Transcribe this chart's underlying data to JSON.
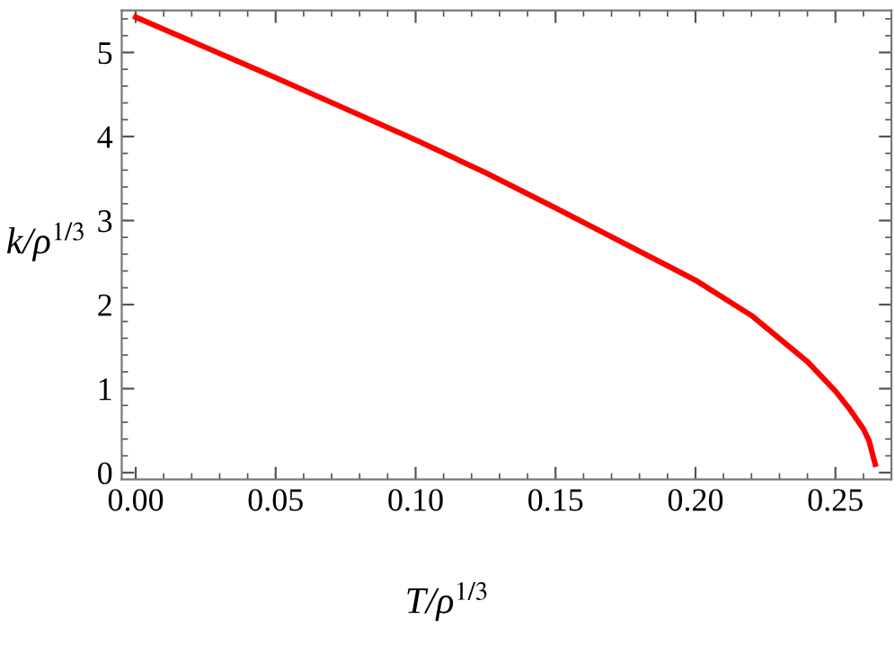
{
  "chart_data": {
    "type": "line",
    "xlabel": "T/ρ$^{1/3}$",
    "ylabel": "k/ρ$^{1/3}$",
    "x": [
      0.0,
      0.05,
      0.1,
      0.125,
      0.15,
      0.2,
      0.22,
      0.24,
      0.25,
      0.255,
      0.26,
      0.262,
      0.2642
    ],
    "series": [
      {
        "color": "#ff0000",
        "values": [
          5.42,
          4.7,
          3.96,
          3.57,
          3.15,
          2.29,
          1.87,
          1.32,
          0.97,
          0.76,
          0.52,
          0.38,
          0.1
        ]
      }
    ],
    "xlim": [
      -0.005,
      0.27
    ],
    "ylim": [
      -0.08,
      5.5
    ],
    "xticks": [
      {
        "value": 0,
        "label": "0.00"
      },
      0.05,
      {
        "value": 0.1,
        "label": "0.10"
      },
      0.15,
      {
        "value": 0.2,
        "label": "0.20"
      },
      0.25
    ],
    "yticks": [
      0,
      1,
      2,
      3,
      4,
      5
    ],
    "grid": false,
    "legend": false,
    "marker": "none",
    "line_style": "solid"
  }
}
